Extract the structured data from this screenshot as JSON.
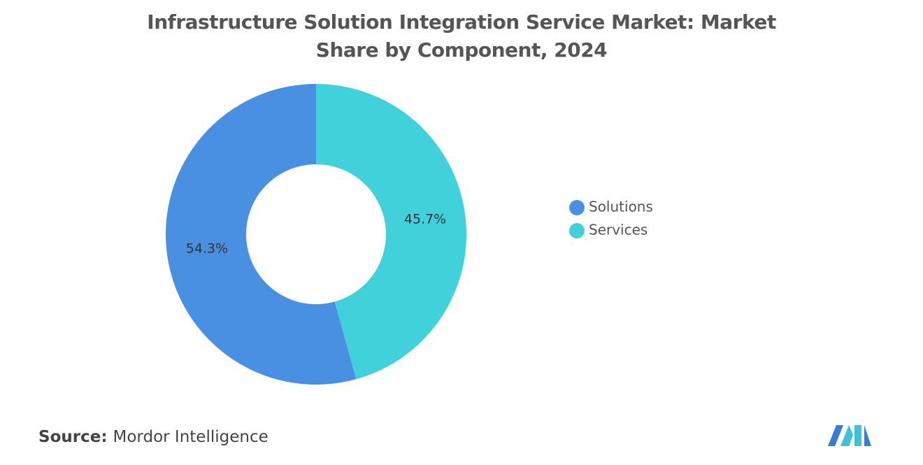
{
  "chart_data": {
    "type": "donut",
    "title": "Infrastructure Solution Integration Service Market: Market Share by Component, 2024",
    "categories": [
      "Solutions",
      "Services"
    ],
    "values": [
      54.3,
      45.7
    ],
    "value_labels": [
      "54.3%",
      "45.7%"
    ],
    "colors": [
      "#4a90e2",
      "#41d1db"
    ],
    "legend": "right",
    "source_label": "Source:",
    "source": "Mordor Intelligence"
  }
}
